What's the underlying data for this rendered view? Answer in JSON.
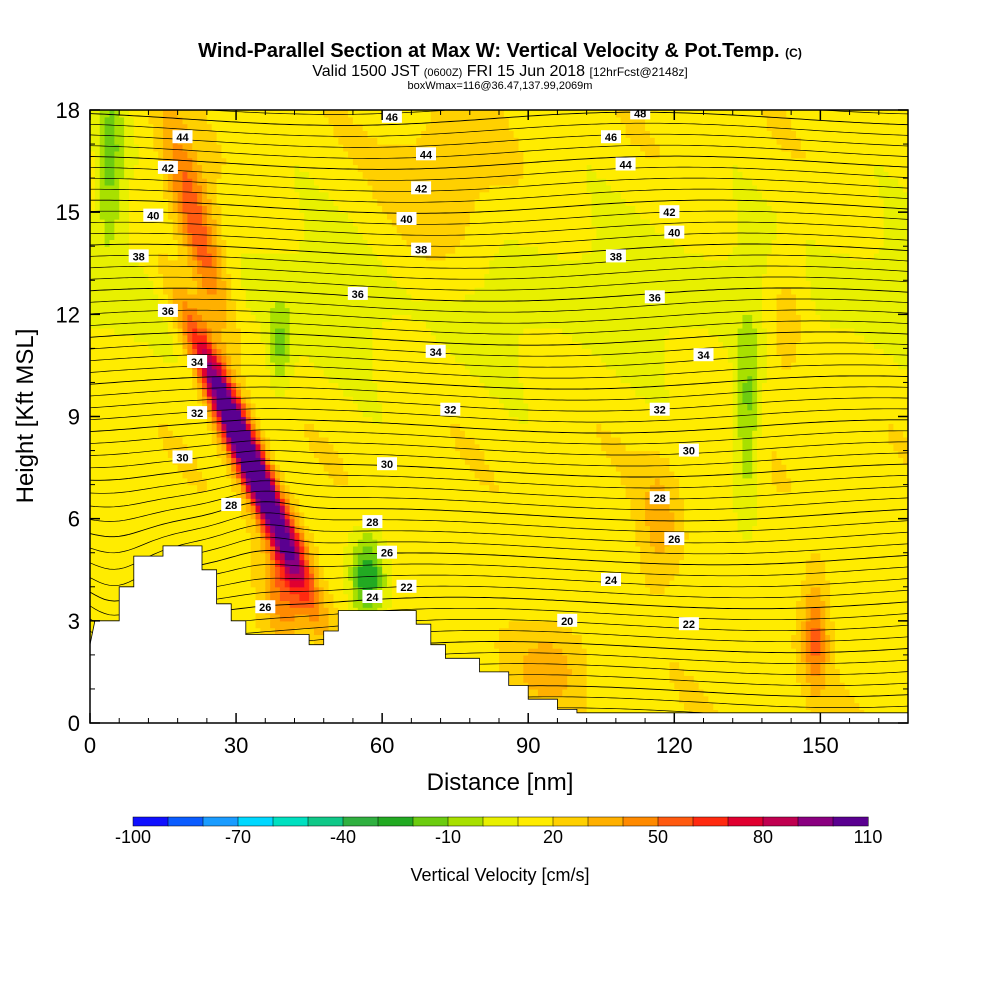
{
  "chart_data": {
    "type": "heatmap",
    "title": "Wind-Parallel Section at Max W: Vertical Velocity & Pot.Temp.",
    "title_mark": "(C)",
    "subtitle_parts": [
      "Valid 1500 JST",
      "(0600Z)",
      "FRI 15 Jun 2018",
      "[12hrFcst@2148z]"
    ],
    "subtitle2": "boxWmax=116@36.47,137.99,2069m",
    "xlabel": "Distance [nm]",
    "ylabel": "Height [Kft MSL]",
    "xlim": [
      0,
      168
    ],
    "ylim": [
      0,
      18
    ],
    "x_ticks": [
      0,
      30,
      60,
      90,
      120,
      150
    ],
    "y_ticks": [
      0,
      3,
      6,
      9,
      12,
      15,
      18
    ],
    "colorbar": {
      "label": "Vertical Velocity [cm/s]",
      "tick_labels": [
        "-100",
        "-70",
        "-40",
        "-10",
        "20",
        "50",
        "80",
        "110"
      ],
      "colors": [
        "#1010ff",
        "#0a5cff",
        "#1a9cff",
        "#00d8ff",
        "#00e0c0",
        "#10c888",
        "#30b040",
        "#22aa22",
        "#6ccc10",
        "#a8e000",
        "#e8f000",
        "#ffec00",
        "#ffd000",
        "#ffb000",
        "#ff8a00",
        "#ff5a10",
        "#ff2a10",
        "#e00030",
        "#c00050",
        "#8a0080",
        "#5a0090"
      ]
    },
    "terrain": [
      [
        0,
        2.3
      ],
      [
        1,
        3.0
      ],
      [
        6,
        3.0
      ],
      [
        6,
        4.0
      ],
      [
        9,
        4.0
      ],
      [
        9,
        4.9
      ],
      [
        15,
        4.9
      ],
      [
        15,
        5.2
      ],
      [
        23,
        5.2
      ],
      [
        23,
        4.5
      ],
      [
        26,
        4.5
      ],
      [
        26,
        3.5
      ],
      [
        29,
        3.5
      ],
      [
        29,
        3.0
      ],
      [
        32,
        3.0
      ],
      [
        32,
        2.6
      ],
      [
        45,
        2.6
      ],
      [
        45,
        2.3
      ],
      [
        48,
        2.3
      ],
      [
        48,
        2.7
      ],
      [
        51,
        2.7
      ],
      [
        51,
        3.3
      ],
      [
        67,
        3.3
      ],
      [
        67,
        2.9
      ],
      [
        70,
        2.9
      ],
      [
        70,
        2.3
      ],
      [
        73,
        2.3
      ],
      [
        73,
        1.9
      ],
      [
        80,
        1.9
      ],
      [
        80,
        1.5
      ],
      [
        86,
        1.5
      ],
      [
        86,
        1.1
      ],
      [
        90,
        1.1
      ],
      [
        90,
        0.7
      ],
      [
        96,
        0.7
      ],
      [
        96,
        0.4
      ],
      [
        100,
        0.4
      ],
      [
        100,
        0.3
      ],
      [
        168,
        0.3
      ]
    ],
    "theta_contours": [
      {
        "value": 20,
        "label": "20",
        "label_at": [
          98,
          3.0
        ]
      },
      {
        "value": 22,
        "label": "22",
        "label_at": [
          123,
          2.9
        ]
      },
      {
        "value": 24,
        "label": "24",
        "label_at": [
          107,
          4.2
        ]
      },
      {
        "value": 26,
        "label": "26",
        "label_at": [
          120,
          5.4
        ]
      },
      {
        "value": 28,
        "label": "28",
        "label_at": [
          117,
          6.6
        ]
      },
      {
        "value": 30,
        "label": "30",
        "label_at": [
          123,
          8.0
        ]
      },
      {
        "value": 32,
        "label": "32",
        "label_at": [
          117,
          9.2
        ]
      },
      {
        "value": 34,
        "label": "34",
        "label_at": [
          126,
          10.8
        ]
      },
      {
        "value": 36,
        "label": "36",
        "label_at": [
          116,
          12.5
        ]
      },
      {
        "value": 38,
        "label": "38",
        "label_at": [
          108,
          13.7
        ]
      },
      {
        "value": 40,
        "label": "40",
        "label_at": [
          120,
          14.4
        ]
      },
      {
        "value": 42,
        "label": "42",
        "label_at": [
          119,
          15.0
        ]
      },
      {
        "value": 44,
        "label": "44",
        "label_at": [
          110,
          16.4
        ]
      },
      {
        "value": 46,
        "label": "46",
        "label_at": [
          107,
          17.2
        ]
      },
      {
        "value": 48,
        "label": "48",
        "label_at": [
          113,
          17.9
        ]
      }
    ],
    "extra_contour_labels": [
      {
        "label": "44",
        "at": [
          19,
          17.2
        ]
      },
      {
        "label": "42",
        "at": [
          16,
          16.3
        ]
      },
      {
        "label": "40",
        "at": [
          13,
          14.9
        ]
      },
      {
        "label": "38",
        "at": [
          10,
          13.7
        ]
      },
      {
        "label": "36",
        "at": [
          16,
          12.1
        ]
      },
      {
        "label": "34",
        "at": [
          22,
          10.6
        ]
      },
      {
        "label": "32",
        "at": [
          22,
          9.1
        ]
      },
      {
        "label": "30",
        "at": [
          19,
          7.8
        ]
      },
      {
        "label": "28",
        "at": [
          29,
          6.4
        ]
      },
      {
        "label": "26",
        "at": [
          36,
          3.4
        ]
      },
      {
        "label": "46",
        "at": [
          62,
          17.8
        ]
      },
      {
        "label": "44",
        "at": [
          69,
          16.7
        ]
      },
      {
        "label": "42",
        "at": [
          68,
          15.7
        ]
      },
      {
        "label": "40",
        "at": [
          65,
          14.8
        ]
      },
      {
        "label": "38",
        "at": [
          68,
          13.9
        ]
      },
      {
        "label": "36",
        "at": [
          55,
          12.6
        ]
      },
      {
        "label": "34",
        "at": [
          71,
          10.9
        ]
      },
      {
        "label": "32",
        "at": [
          74,
          9.2
        ]
      },
      {
        "label": "30",
        "at": [
          61,
          7.6
        ]
      },
      {
        "label": "28",
        "at": [
          58,
          5.9
        ]
      },
      {
        "label": "26",
        "at": [
          61,
          5.0
        ]
      },
      {
        "label": "24",
        "at": [
          58,
          3.7
        ]
      },
      {
        "label": "22",
        "at": [
          65,
          4.0
        ]
      }
    ],
    "vv_features": [
      {
        "name": "main updraft core",
        "x": 32,
        "y": 8.0,
        "sx": 3.2,
        "sy": 3.6,
        "amp": 135,
        "tilt": -3.0
      },
      {
        "name": "upper updraft plume",
        "x": 22,
        "y": 14.5,
        "sx": 4.0,
        "sy": 3.0,
        "amp": 50,
        "tilt": -1.8
      },
      {
        "name": "low-level updraft",
        "x": 40,
        "y": 4.0,
        "sx": 4.5,
        "sy": 1.8,
        "amp": 35,
        "tilt": 0
      },
      {
        "name": "downdraft near terrain",
        "x": 57,
        "y": 4.3,
        "sx": 3.5,
        "sy": 1.3,
        "amp": -45,
        "tilt": 0
      },
      {
        "name": "downdraft upper left",
        "x": 4,
        "y": 16.5,
        "sx": 3.0,
        "sy": 2.5,
        "amp": -30,
        "tilt": 0
      },
      {
        "name": "downdraft mid right",
        "x": 135,
        "y": 9.0,
        "sx": 2.5,
        "sy": 2.5,
        "amp": -30,
        "tilt": 0
      },
      {
        "name": "downdraft mid left",
        "x": 39,
        "y": 11.0,
        "sx": 2.2,
        "sy": 1.3,
        "amp": -25,
        "tilt": 0
      },
      {
        "name": "right lower updraft",
        "x": 149,
        "y": 2.5,
        "sx": 2.5,
        "sy": 1.6,
        "amp": 35,
        "tilt": 0
      },
      {
        "name": "right mid updraft",
        "x": 117,
        "y": 6.0,
        "sx": 4.0,
        "sy": 1.8,
        "amp": 18,
        "tilt": 0
      },
      {
        "name": "lower middle updraft",
        "x": 95,
        "y": 1.7,
        "sx": 8.0,
        "sy": 1.2,
        "amp": 18,
        "tilt": 0
      },
      {
        "name": "upper middle updraft",
        "x": 72,
        "y": 15.5,
        "sx": 10.0,
        "sy": 2.5,
        "amp": 18,
        "tilt": 0
      },
      {
        "name": "right upper updraft",
        "x": 143,
        "y": 11.7,
        "sx": 4.0,
        "sy": 2.0,
        "amp": 18,
        "tilt": 0
      }
    ]
  }
}
